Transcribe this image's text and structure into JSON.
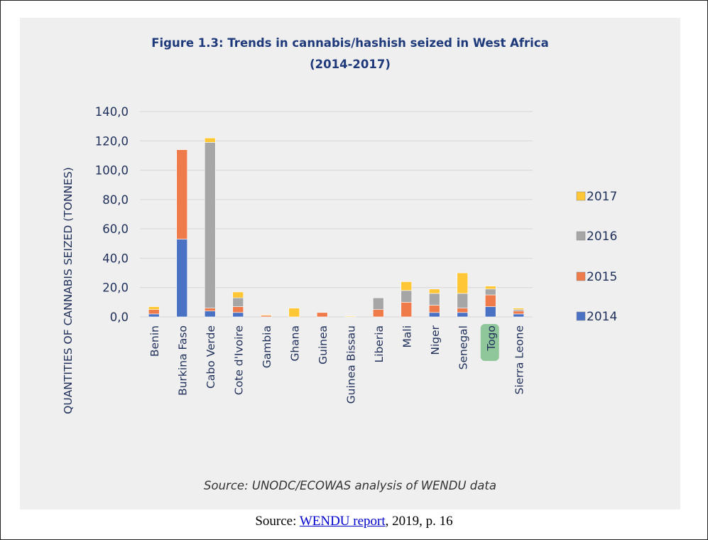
{
  "chart_data": {
    "type": "bar",
    "stacked": true,
    "title": "Figure 1.3: Trends in cannabis/hashish seized in West Africa (2014-2017)",
    "title_lines": [
      "Figure 1.3: Trends in cannabis/hashish seized in West Africa",
      "(2014-2017)"
    ],
    "xlabel": "",
    "ylabel": "QUANTITIES OF CANNABIS SEIZED (TONNES)",
    "ylim": [
      0,
      140
    ],
    "yticks": [
      "0,0",
      "20,0",
      "40,0",
      "60,0",
      "80,0",
      "100,0",
      "120,0",
      "140,0"
    ],
    "grid": true,
    "legend_position": "right",
    "categories": [
      "Benin",
      "Burkina Faso",
      "Cabo Verde",
      "Cote d'Ivoire",
      "Gambia",
      "Ghana",
      "Guinea",
      "Guinea Bissau",
      "Liberia",
      "Mali",
      "Niger",
      "Senegal",
      "Togo",
      "Sierra Leone"
    ],
    "highlighted_category": "Togo",
    "highlight_color": "#8fc79a",
    "series": [
      {
        "name": "2014",
        "color": "#4a72c4",
        "values": [
          2,
          53,
          4,
          3,
          0,
          0,
          0,
          0,
          0,
          0,
          3,
          3,
          7,
          2
        ]
      },
      {
        "name": "2015",
        "color": "#ef7a4a",
        "values": [
          3,
          61,
          2,
          4,
          1,
          0,
          3,
          0,
          5,
          10,
          5,
          3,
          8,
          2
        ]
      },
      {
        "name": "2016",
        "color": "#a6a6a6",
        "values": [
          0,
          0,
          113,
          6,
          0,
          0,
          0,
          0,
          8,
          8,
          8,
          10,
          4,
          1
        ]
      },
      {
        "name": "2017",
        "color": "#ffc735",
        "values": [
          2,
          0,
          3,
          4,
          0.5,
          6,
          0,
          0.5,
          0,
          6,
          3,
          14,
          2,
          1
        ]
      }
    ],
    "legend_order": [
      "2017",
      "2016",
      "2015",
      "2014"
    ]
  },
  "inner_source": "Source: UNODC/ECOWAS analysis of WENDU data",
  "caption": {
    "prefix": "Source: ",
    "link_text": "WENDU report",
    "suffix": ", 2019, p. 16"
  }
}
